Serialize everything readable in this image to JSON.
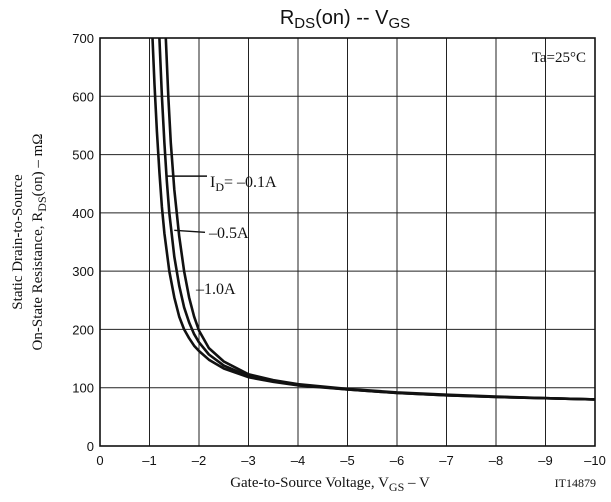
{
  "chart_data": {
    "type": "line",
    "title": {
      "main": "R",
      "sub1": "DS",
      "mid": "(on)  --  V",
      "sub2": "GS"
    },
    "xlabel": {
      "pre": "Gate-to-Source Voltage, V",
      "sub": "GS",
      "post": "  –  V"
    },
    "ylabel": {
      "line1": "Static Drain-to-Source",
      "line2_pre": "On-State Resistance, R",
      "line2_sub": "DS",
      "line2_post": "(on)  –  mΩ"
    },
    "xlim": [
      0,
      -10
    ],
    "ylim": [
      0,
      700
    ],
    "x_ticks": [
      "0",
      "–1",
      "–2",
      "–3",
      "–4",
      "–5",
      "–6",
      "–7",
      "–8",
      "–9",
      "–10"
    ],
    "y_ticks": [
      "0",
      "100",
      "200",
      "300",
      "400",
      "500",
      "600",
      "700"
    ],
    "grid": true,
    "condition": "Ta=25°C",
    "figure_id": "IT14879",
    "series": [
      {
        "name": "I_D = –0.1A",
        "x": [
          -1.06,
          -1.1,
          -1.15,
          -1.2,
          -1.25,
          -1.3,
          -1.4,
          -1.5,
          -1.6,
          -1.7,
          -1.8,
          -1.9,
          -2.0,
          -2.2,
          -2.5,
          -3,
          -3.5,
          -4,
          -5,
          -6,
          -7,
          -8,
          -9,
          -10
        ],
        "y": [
          700,
          620,
          540,
          470,
          410,
          365,
          300,
          255,
          222,
          200,
          185,
          172,
          163,
          148,
          133,
          118,
          110,
          104,
          97,
          91,
          87,
          84,
          82,
          80
        ]
      },
      {
        "name": "–0.5A",
        "x": [
          -1.2,
          -1.25,
          -1.3,
          -1.35,
          -1.4,
          -1.5,
          -1.6,
          -1.7,
          -1.8,
          -1.9,
          -2.0,
          -2.2,
          -2.5,
          -3,
          -3.5,
          -4,
          -5,
          -6,
          -7,
          -8,
          -9,
          -10
        ],
        "y": [
          700,
          600,
          520,
          455,
          400,
          325,
          275,
          238,
          212,
          192,
          178,
          157,
          138,
          120,
          111,
          105,
          97,
          91,
          87,
          84,
          82,
          80
        ]
      },
      {
        "name": "–1.0A",
        "x": [
          -1.33,
          -1.38,
          -1.43,
          -1.5,
          -1.6,
          -1.7,
          -1.8,
          -1.9,
          -2.0,
          -2.2,
          -2.5,
          -3,
          -3.5,
          -4,
          -5,
          -6,
          -7,
          -8,
          -9,
          -10
        ],
        "y": [
          700,
          600,
          520,
          440,
          360,
          300,
          255,
          222,
          198,
          168,
          145,
          123,
          113,
          106,
          98,
          92,
          88,
          85,
          82,
          80
        ]
      }
    ],
    "labels": {
      "series1_pre": "I",
      "series1_sub": "D",
      "series1_post": "= –0.1A",
      "series2": "–0.5A",
      "series3": "–1.0A"
    },
    "annotation_points": [
      {
        "series": 0,
        "x": -1.35,
        "y": 463
      },
      {
        "series": 1,
        "x": -1.5,
        "y": 370
      }
    ]
  }
}
